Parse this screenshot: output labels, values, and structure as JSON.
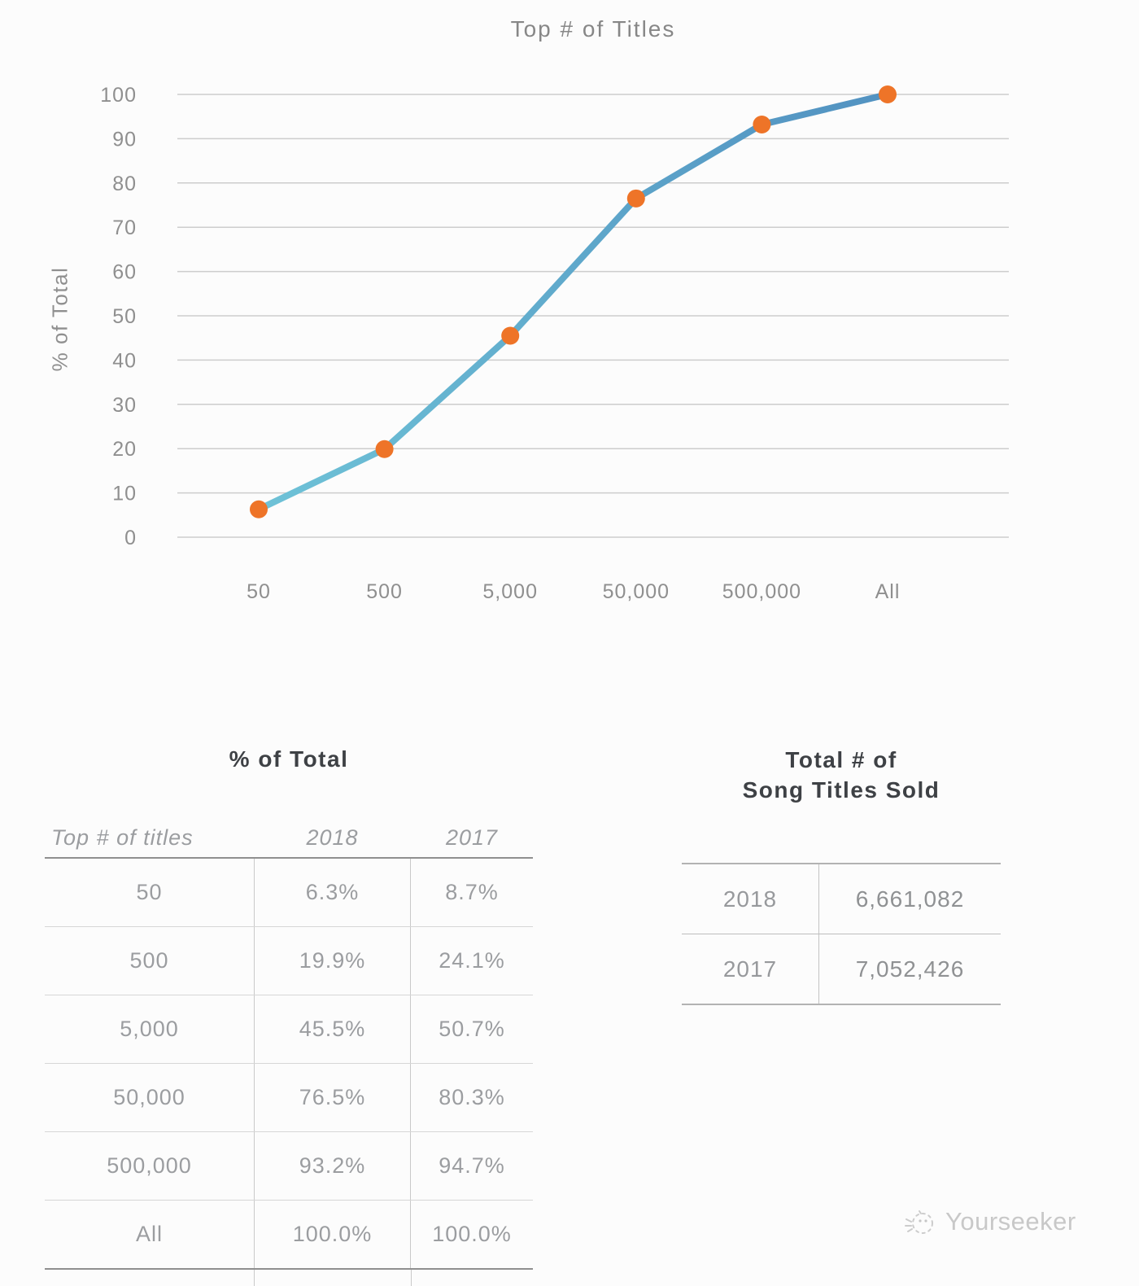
{
  "chart_data": {
    "type": "line",
    "title": "Top # of Titles",
    "xlabel": "",
    "ylabel": "% of Total",
    "categories": [
      "50",
      "500",
      "5,000",
      "50,000",
      "500,000",
      "All"
    ],
    "series": [
      {
        "name": "2018",
        "values": [
          6.3,
          19.9,
          45.5,
          76.5,
          93.2,
          100.0
        ]
      }
    ],
    "ylim": [
      0,
      100
    ],
    "yticks": [
      0,
      10,
      20,
      30,
      40,
      50,
      60,
      70,
      80,
      90,
      100
    ],
    "grid": "horizontal",
    "legend": "none",
    "line_color_start": "#6ec2d7",
    "line_color_end": "#5292c1",
    "marker_color": "#ee7428",
    "gridline_color": "#cdcdcd",
    "axis_text_color": "#8f8f8f"
  },
  "tables": {
    "pct_of_total": {
      "title": "% of Total",
      "columns": [
        "Top # of titles",
        "2018",
        "2017"
      ],
      "rows": [
        [
          "50",
          "6.3%",
          "8.7%"
        ],
        [
          "500",
          "19.9%",
          "24.1%"
        ],
        [
          "5,000",
          "45.5%",
          "50.7%"
        ],
        [
          "50,000",
          "76.5%",
          "80.3%"
        ],
        [
          "500,000",
          "93.2%",
          "94.7%"
        ],
        [
          "All",
          "100.0%",
          "100.0%"
        ]
      ]
    },
    "titles_sold": {
      "title_line1": "Total # of",
      "title_line2": "Song Titles Sold",
      "rows": [
        [
          "2018",
          "6,661,082"
        ],
        [
          "2017",
          "7,052,426"
        ]
      ]
    }
  },
  "footer": {
    "brand": "Yourseeker"
  }
}
